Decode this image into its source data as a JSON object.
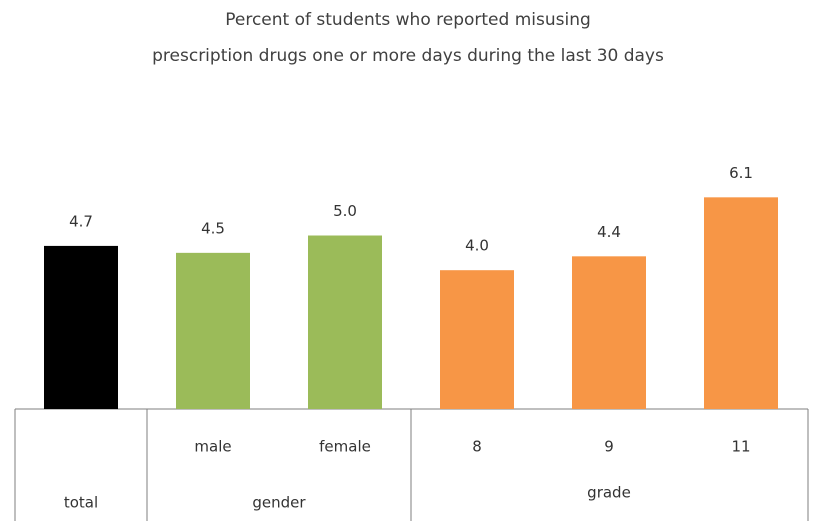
{
  "chart_data": {
    "type": "bar",
    "title": [
      "Percent of students who reported misusing",
      "prescription drugs one or more days during the last 30 days"
    ],
    "series": [
      {
        "name": "total",
        "color": "#000000",
        "categories": [
          null
        ],
        "values": [
          4.7
        ],
        "value_labels": [
          "4.7"
        ]
      },
      {
        "name": "gender",
        "color": "#9bbb59",
        "categories": [
          "male",
          "female"
        ],
        "values": [
          4.5,
          5.0
        ],
        "value_labels": [
          "4.5",
          "5.0"
        ]
      },
      {
        "name": "grade",
        "color": "#f79646",
        "categories": [
          "8",
          "9",
          "11"
        ],
        "values": [
          4.0,
          4.4,
          6.1
        ],
        "value_labels": [
          "4.0",
          "4.4",
          "6.1"
        ]
      }
    ]
  }
}
